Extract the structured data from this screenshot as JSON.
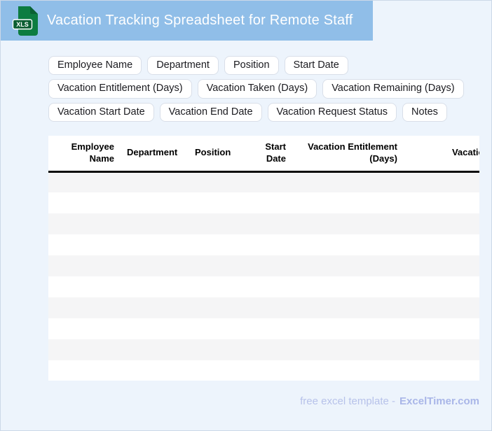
{
  "header": {
    "title": "Vacation Tracking Spreadsheet for Remote Staff",
    "icon_label": "XLS"
  },
  "chips": [
    "Employee Name",
    "Department",
    "Position",
    "Start Date",
    "Vacation Entitlement (Days)",
    "Vacation Taken (Days)",
    "Vacation Remaining (Days)",
    "Vacation Start Date",
    "Vacation End Date",
    "Vacation Request Status",
    "Notes"
  ],
  "table": {
    "columns": [
      "Employee Name",
      "Department",
      "Position",
      "Start Date",
      "Vacation Entitlement (Days)",
      "Vacation Taken (Days)"
    ],
    "empty_row_count": 10
  },
  "footer": {
    "prefix": "free excel template -",
    "brand": "ExcelTimer.com"
  },
  "colors": {
    "banner_blue": "#90bee8",
    "page_background": "#edf4fc",
    "icon_green": "#0d7c41",
    "icon_badge_green": "#0b5e32",
    "row_stripe": "#f5f5f6",
    "header_underline": "#0b0b0b",
    "footer_text": "#b7c2ea",
    "footer_brand": "#a9b6e8"
  }
}
